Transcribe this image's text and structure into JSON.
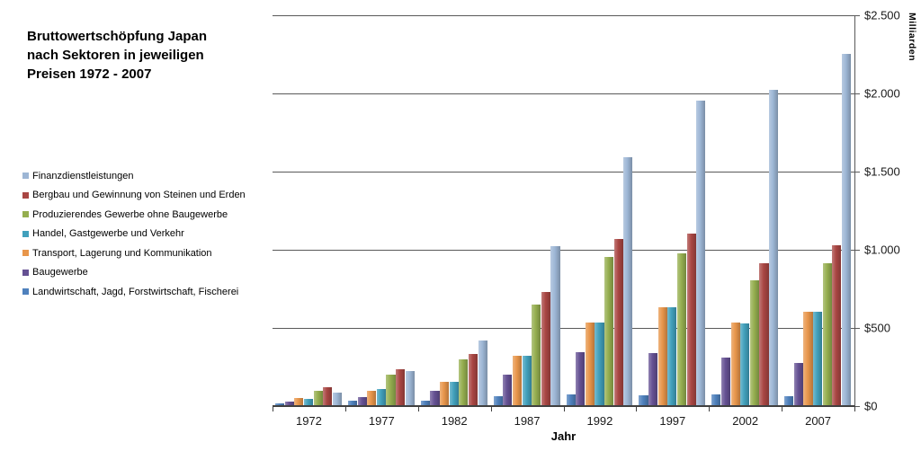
{
  "title": "Bruttowertschöpfung Japan\nnach Sektoren in jeweiligen\nPreisen 1972 - 2007",
  "chart_data": {
    "type": "bar",
    "title": "Bruttowertschöpfung Japan nach Sektoren in jeweiligen Preisen 1972 - 2007",
    "xlabel": "Jahr",
    "ylabel": "Milliarden",
    "ylim": [
      0,
      2500
    ],
    "grid": true,
    "legend_position": "left",
    "y_tick_labels": [
      "$0",
      "$500",
      "$1.000",
      "$1.500",
      "$2.000",
      "$2.500"
    ],
    "categories": [
      "1972",
      "1977",
      "1982",
      "1987",
      "1992",
      "1997",
      "2002",
      "2007"
    ],
    "series": [
      {
        "key": "landwirtschaft",
        "name": "Landwirtschaft, Jagd, Forstwirtschaft, Fischerei",
        "color": "#4F81BD",
        "values": [
          15,
          35,
          37,
          62,
          76,
          69,
          72,
          65
        ]
      },
      {
        "key": "baugewerbe",
        "name": "Baugewerbe",
        "color": "#655193",
        "values": [
          30,
          55,
          96,
          200,
          344,
          338,
          308,
          273
        ]
      },
      {
        "key": "transport",
        "name": "Transport, Lagerung und Kommunikation",
        "color": "#E8964B",
        "values": [
          52,
          97,
          156,
          320,
          532,
          630,
          535,
          600
        ]
      },
      {
        "key": "handel",
        "name": "Handel, Gastgewerbe und Verkehr",
        "color": "#41A0BC",
        "values": [
          47,
          107,
          156,
          320,
          532,
          630,
          527,
          600
        ]
      },
      {
        "key": "produzierendes",
        "name": "Produzierendes Gewerbe ohne Baugewerbe",
        "color": "#95AE4F",
        "values": [
          97,
          202,
          298,
          648,
          955,
          977,
          805,
          915
        ]
      },
      {
        "key": "bergbau",
        "name": "Bergbau und Gewinnung von Steinen und Erden",
        "color": "#A94643",
        "values": [
          123,
          235,
          333,
          728,
          1065,
          1100,
          912,
          1030
        ]
      },
      {
        "key": "finanz",
        "name": "Finanzdienstleistungen",
        "color": "#9DB6D5",
        "values": [
          88,
          222,
          417,
          1019,
          1590,
          1950,
          2018,
          2250
        ]
      }
    ],
    "legend_order": [
      "finanz",
      "bergbau",
      "produzierendes",
      "handel",
      "transport",
      "baugewerbe",
      "landwirtschaft"
    ]
  }
}
